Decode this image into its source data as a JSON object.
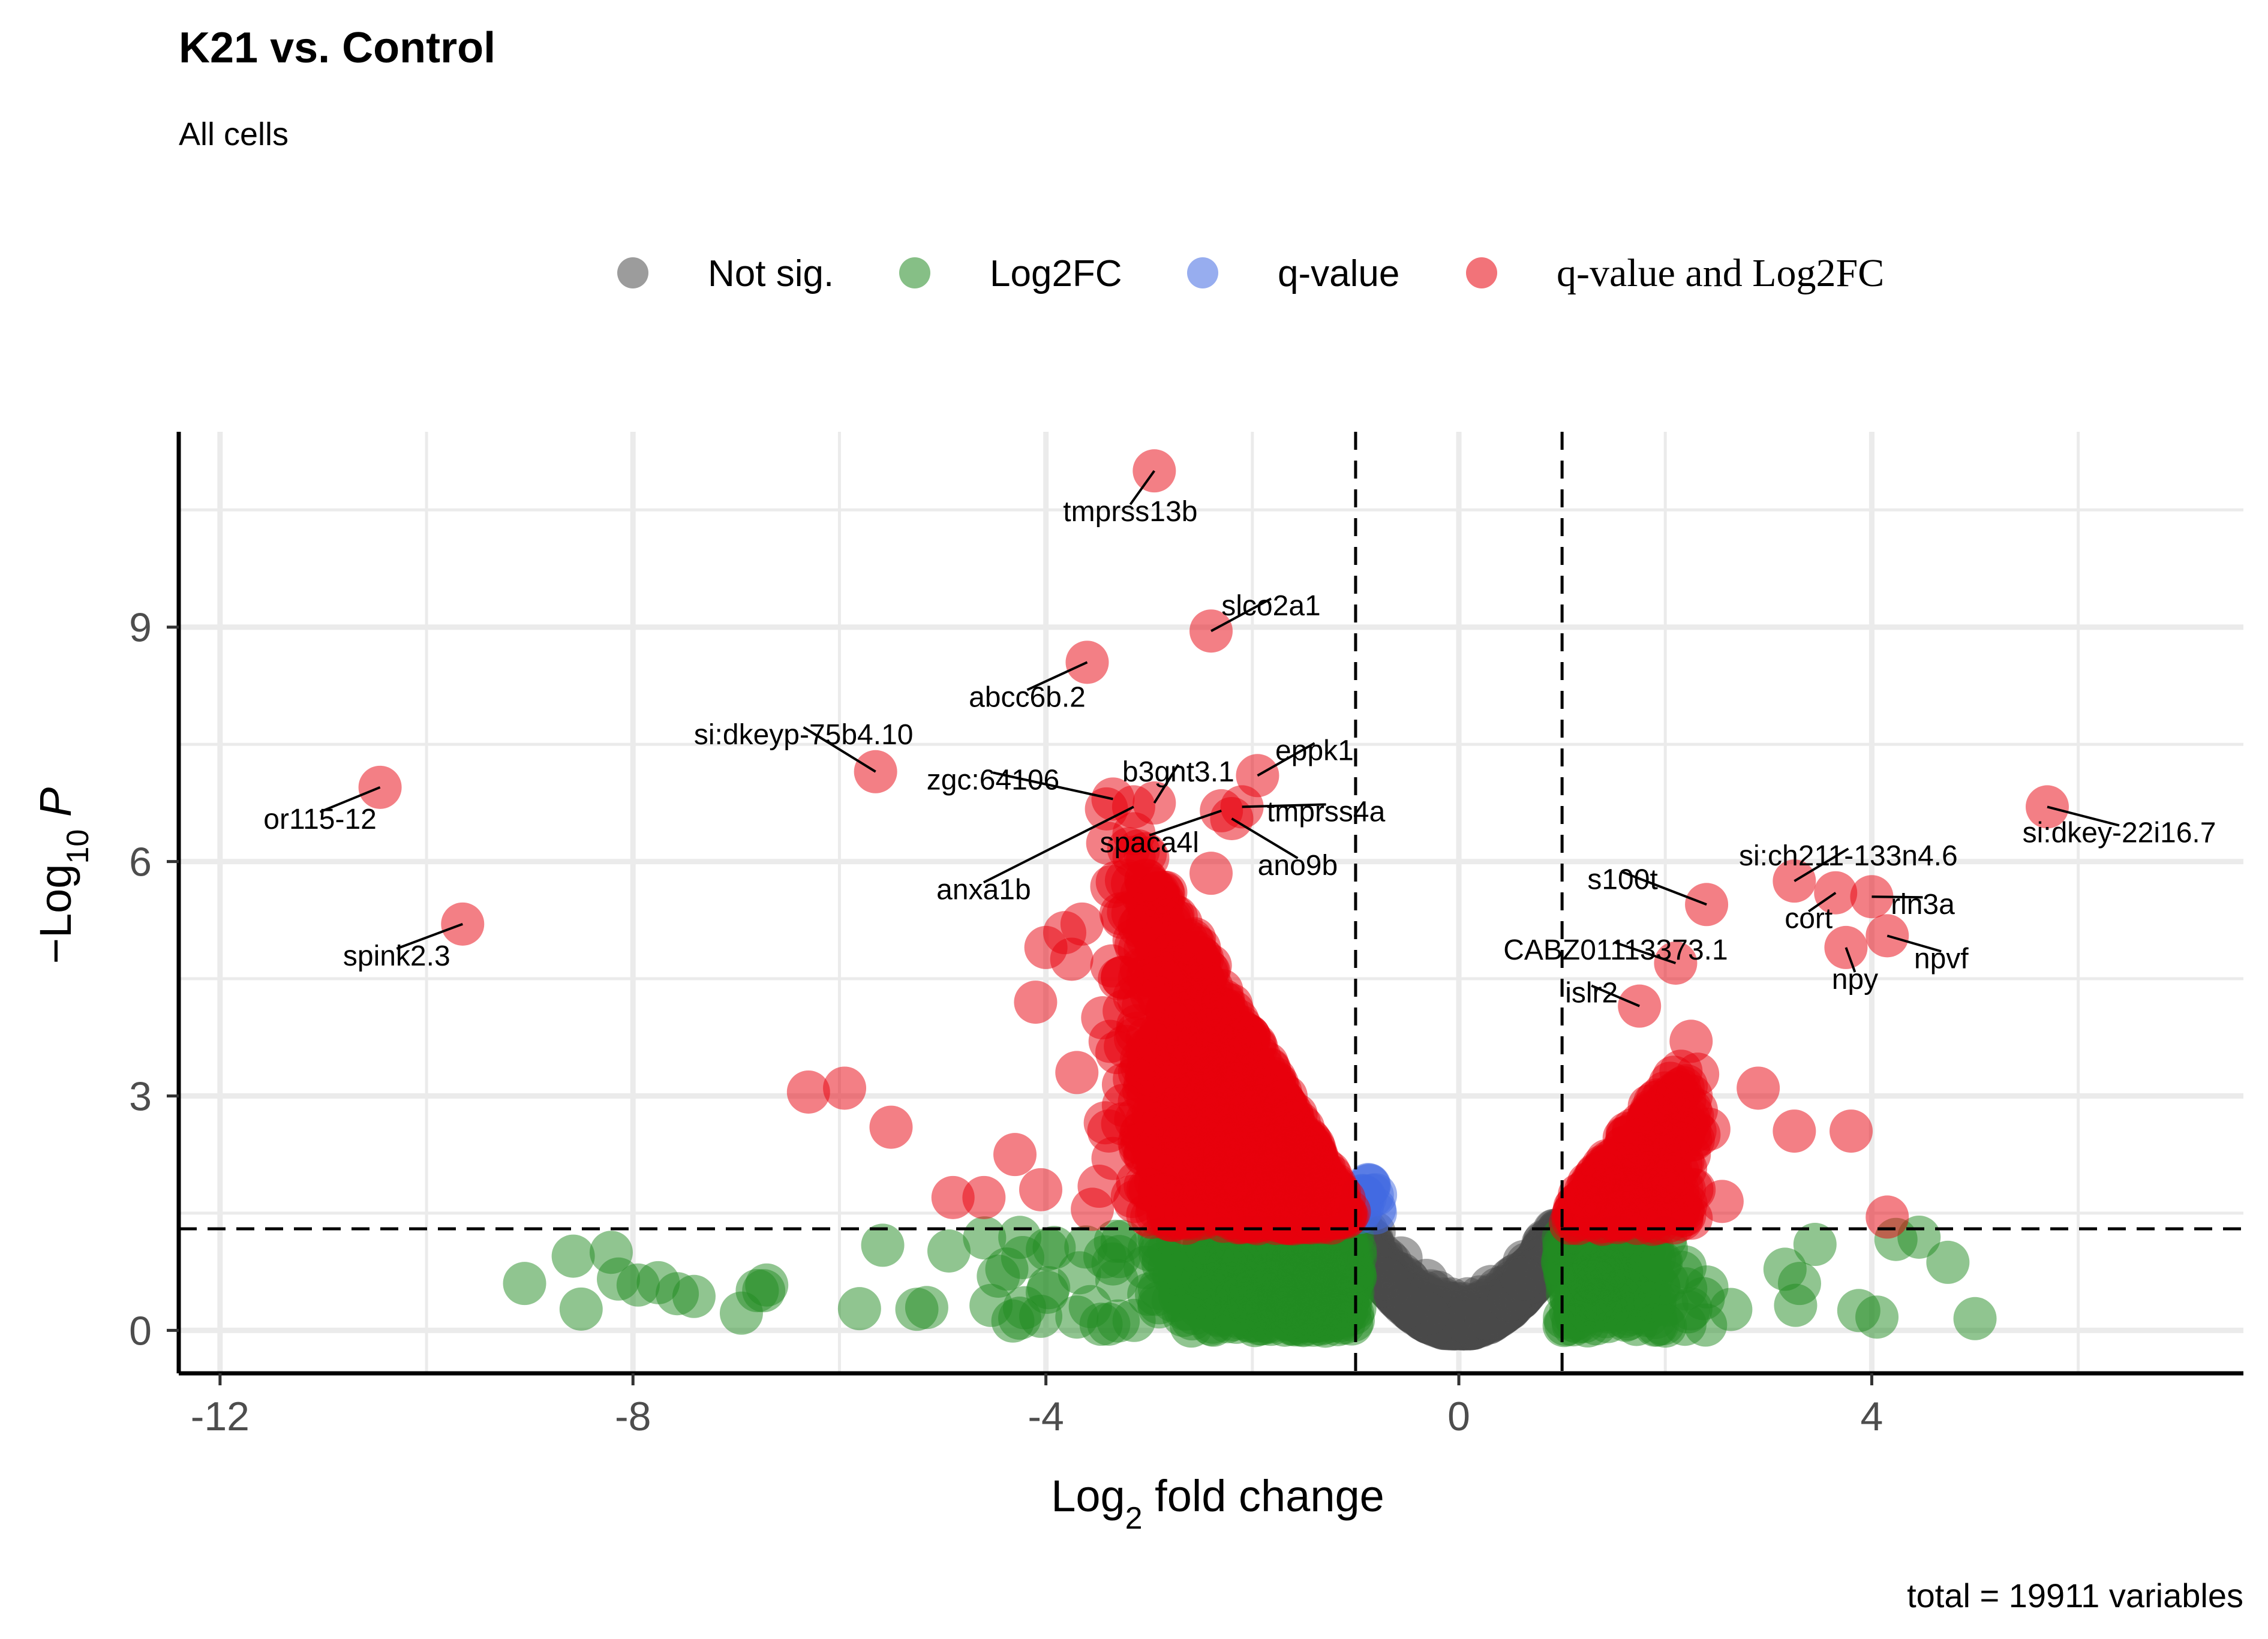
{
  "chart_data": {
    "type": "scatter",
    "title": "K21 vs. Control",
    "subtitle": "All cells",
    "xlabel": "Log",
    "xlabel_sub": "2",
    "xlabel_rest": " fold change",
    "ylabel": "−Log",
    "ylabel_sub": "10",
    "ylabel_rest": " P",
    "caption": "total = 19911 variables",
    "xlim": [
      -12.4,
      7.6
    ],
    "ylim": [
      -0.55,
      11.5
    ],
    "xticks": [
      -12,
      -8,
      -4,
      0,
      4
    ],
    "xtick_labels": [
      "-12",
      "-8",
      "-4",
      "0",
      "4"
    ],
    "yticks": [
      0,
      3,
      6,
      9
    ],
    "ytick_labels": [
      "0",
      "3",
      "6",
      "9"
    ],
    "grid": true,
    "fc_cutoff": [
      -1,
      1
    ],
    "p_cutoff": 1.3,
    "legend_position": "top",
    "legend": [
      {
        "key": "ns",
        "label": "Not sig.",
        "color": "#4a4a4a"
      },
      {
        "key": "fc",
        "label": "Log2FC",
        "color": "#228b22"
      },
      {
        "key": "q",
        "label": "q-value",
        "color": "#4169e1"
      },
      {
        "key": "both",
        "label": "q-value and Log2FC",
        "color": "#e8000b"
      }
    ],
    "labeled_points": [
      {
        "gene": "tmprss13b",
        "x": -2.95,
        "y": 11.0
      },
      {
        "gene": "slco2a1",
        "x": -2.4,
        "y": 8.95
      },
      {
        "gene": "abcc6b.2",
        "x": -3.6,
        "y": 8.55
      },
      {
        "gene": "si:dkeyp-75b4.10",
        "x": -5.65,
        "y": 7.15
      },
      {
        "gene": "or115-12",
        "x": -10.45,
        "y": 6.95
      },
      {
        "gene": "eppk1",
        "x": -1.95,
        "y": 7.1
      },
      {
        "gene": "b3gnt3.1",
        "x": -2.95,
        "y": 6.75
      },
      {
        "gene": "zgc:64106",
        "x": -3.35,
        "y": 6.8
      },
      {
        "gene": "tmprss4a",
        "x": -2.1,
        "y": 6.7
      },
      {
        "gene": "spaca4l",
        "x": -2.3,
        "y": 6.65
      },
      {
        "gene": "ano9b",
        "x": -2.2,
        "y": 6.55
      },
      {
        "gene": "anxa1b",
        "x": -3.15,
        "y": 6.7
      },
      {
        "gene": "spink2.3",
        "x": -9.65,
        "y": 5.2
      },
      {
        "gene": "s100t",
        "x": 2.4,
        "y": 5.45
      },
      {
        "gene": "si:ch211-133n4.6",
        "x": 3.25,
        "y": 5.75
      },
      {
        "gene": "cort",
        "x": 3.65,
        "y": 5.6
      },
      {
        "gene": "rln3a",
        "x": 4.0,
        "y": 5.55
      },
      {
        "gene": "CABZ01113373.1",
        "x": 2.1,
        "y": 4.7
      },
      {
        "gene": "npvf",
        "x": 4.15,
        "y": 5.05
      },
      {
        "gene": "npy",
        "x": 3.75,
        "y": 4.9
      },
      {
        "gene": "islr2",
        "x": 1.75,
        "y": 4.15
      },
      {
        "gene": "si:dkey-22i16.7",
        "x": 5.7,
        "y": 6.7
      }
    ],
    "scatter_seed": 20231,
    "scatter_counts": {
      "ns": 1500,
      "fc": 700,
      "q": 14,
      "both": 1300
    }
  }
}
